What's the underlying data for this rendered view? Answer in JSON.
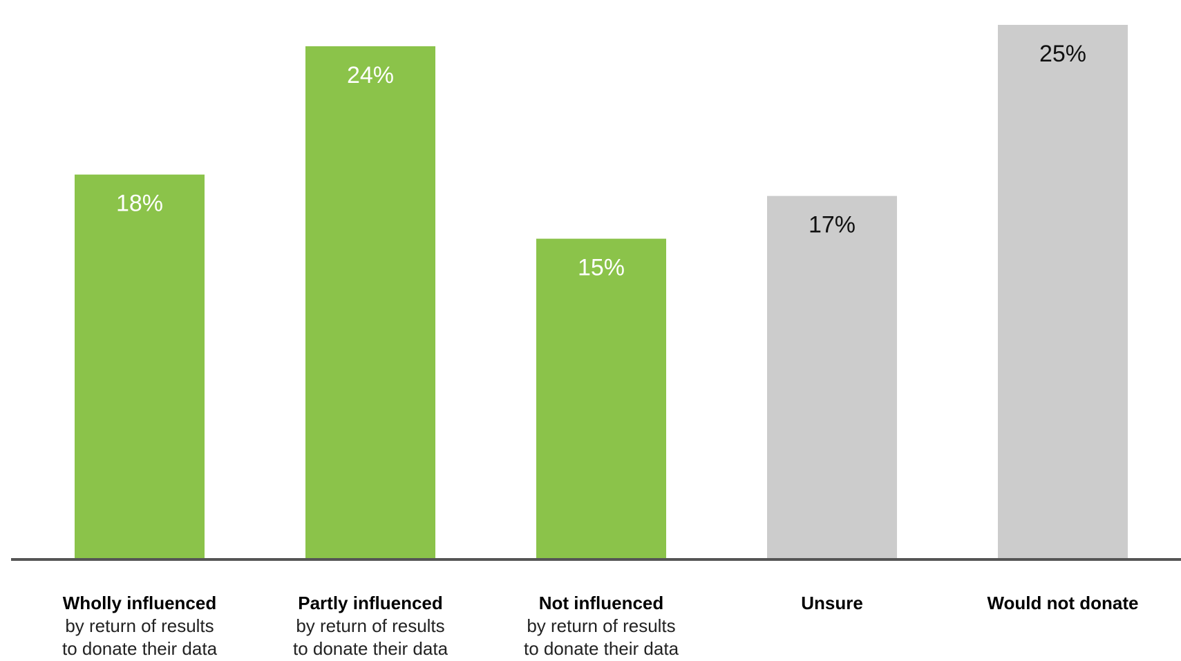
{
  "chart_data": {
    "type": "bar",
    "categories": [
      {
        "label": "Wholly influenced",
        "sub_lines": [
          "by return of results",
          "to donate their data"
        ]
      },
      {
        "label": "Partly influenced",
        "sub_lines": [
          "by return of results",
          "to donate their data"
        ]
      },
      {
        "label": "Not influenced",
        "sub_lines": [
          "by return of results",
          "to donate their data"
        ]
      },
      {
        "label": "Unsure",
        "sub_lines": []
      },
      {
        "label": "Would not donate",
        "sub_lines": []
      }
    ],
    "values": [
      18,
      24,
      15,
      17,
      25
    ],
    "data_labels": [
      "18%",
      "24%",
      "15%",
      "17%",
      "25%"
    ],
    "unit": "%",
    "bar_colors": [
      "#8bc34a",
      "#8bc34a",
      "#8bc34a",
      "#cccccc",
      "#cccccc"
    ],
    "label_colors": [
      "#ffffff",
      "#ffffff",
      "#ffffff",
      "#111111",
      "#111111"
    ],
    "baseline_color": "#555555",
    "title": "",
    "xlabel": "",
    "ylabel": "",
    "ylim": [
      0,
      25
    ],
    "grid": false,
    "legend": "none"
  }
}
